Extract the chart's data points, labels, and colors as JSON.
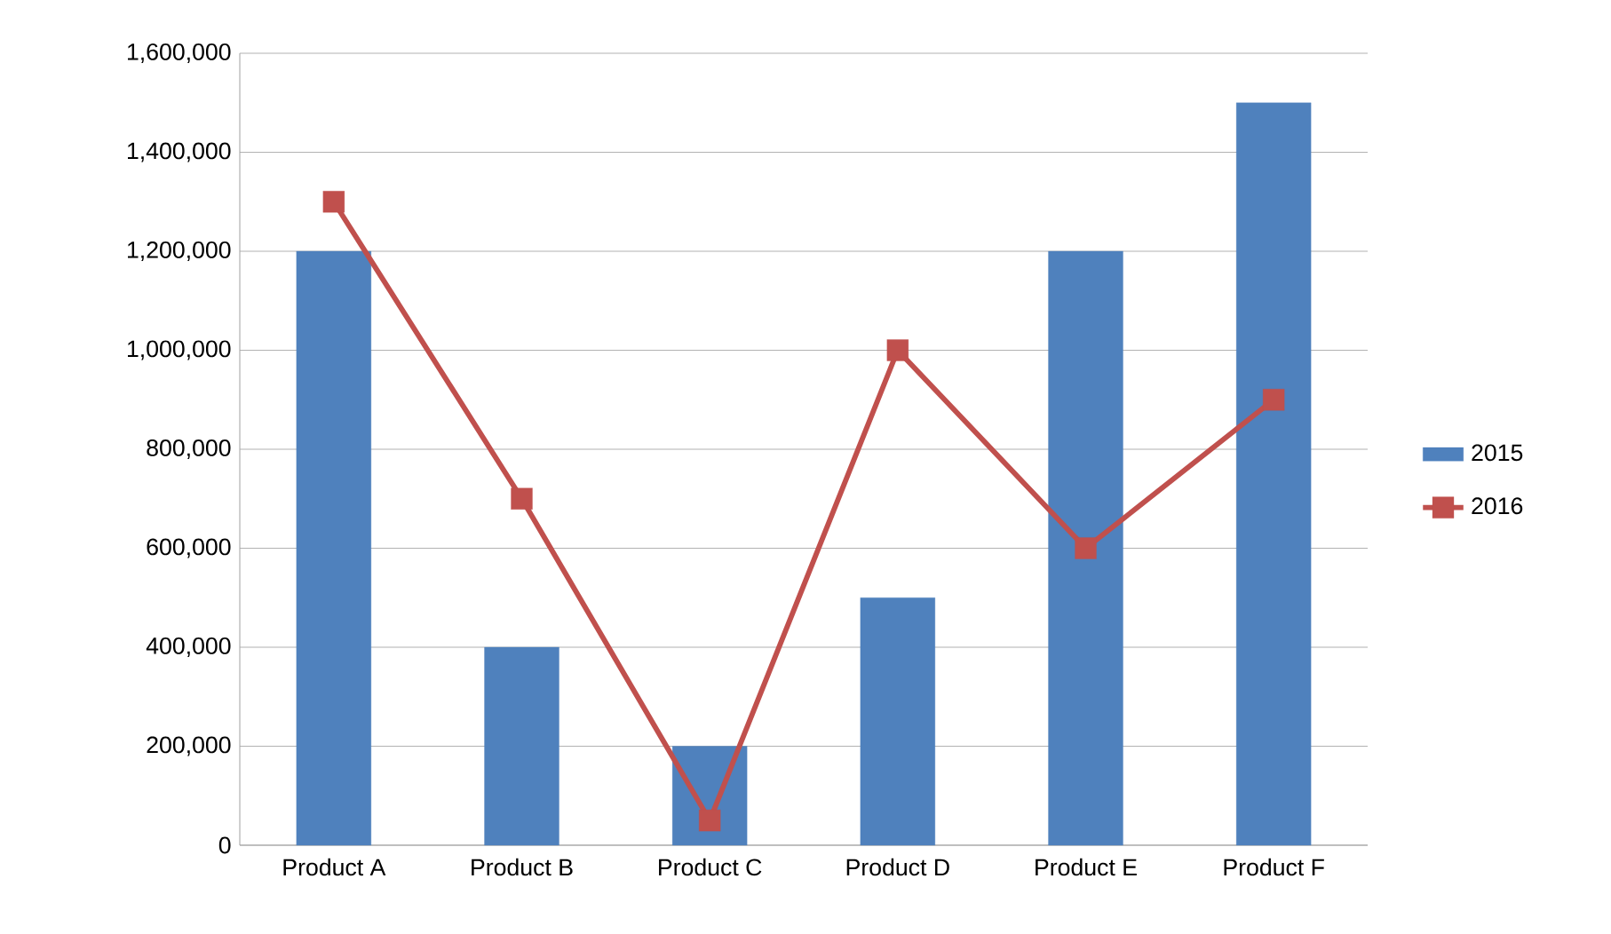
{
  "chart_data": {
    "type": "bar",
    "categories": [
      "Product A",
      "Product B",
      "Product C",
      "Product D",
      "Product E",
      "Product F"
    ],
    "series": [
      {
        "name": "2015",
        "color": "#4f81bd",
        "values": [
          1200000,
          400000,
          200000,
          500000,
          1200000,
          1500000
        ]
      },
      {
        "name": "2016",
        "type": "line",
        "color": "#c0504d",
        "marker": "square",
        "line_style": "solid",
        "values": [
          1300000,
          700000,
          50000,
          1000000,
          600000,
          900000
        ]
      }
    ],
    "ylim": [
      0,
      1600000
    ],
    "yticks": [
      {
        "value": 0,
        "label": "0"
      },
      {
        "value": 200000,
        "label": "200,000"
      },
      {
        "value": 400000,
        "label": "400,000"
      },
      {
        "value": 600000,
        "label": "600,000"
      },
      {
        "value": 800000,
        "label": "800,000"
      },
      {
        "value": 1000000,
        "label": "1,000,000"
      },
      {
        "value": 1200000,
        "label": "1,200,000"
      },
      {
        "value": 1400000,
        "label": "1,400,000"
      },
      {
        "value": 1600000,
        "label": "1,600,000"
      }
    ],
    "grid": "y",
    "legend": "right"
  }
}
